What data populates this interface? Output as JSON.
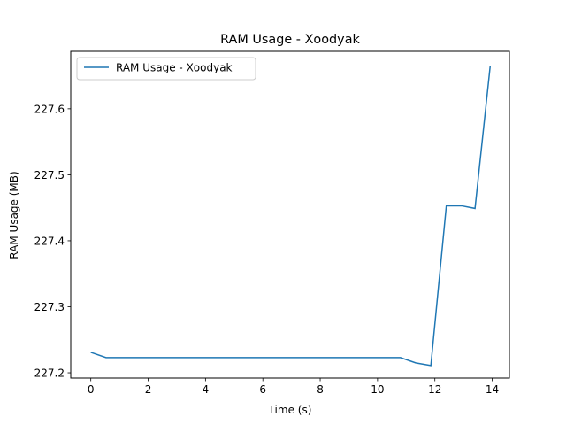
{
  "chart_data": {
    "type": "line",
    "title": "RAM Usage - Xoodyak",
    "xlabel": "Time (s)",
    "ylabel": "RAM Usage (MB)",
    "xlim": [
      -0.7,
      14.6
    ],
    "ylim": [
      227.192,
      227.687
    ],
    "xticks": [
      0,
      2,
      4,
      6,
      8,
      10,
      12,
      14
    ],
    "yticks": [
      227.2,
      227.3,
      227.4,
      227.5,
      227.6
    ],
    "ytick_labels": [
      "227.2",
      "227.3",
      "227.4",
      "227.5",
      "227.6"
    ],
    "xtick_labels": [
      "0",
      "2",
      "4",
      "6",
      "8",
      "10",
      "12",
      "14"
    ],
    "grid": false,
    "legend": {
      "placement": "top-left"
    },
    "series": [
      {
        "name": "RAM Usage - Xoodyak",
        "color": "#1f77b4",
        "x": [
          0,
          0.53,
          1.06,
          1.6,
          2.13,
          2.66,
          3.2,
          3.73,
          4.26,
          4.8,
          5.33,
          5.86,
          6.4,
          6.93,
          7.46,
          8.0,
          8.53,
          9.06,
          9.6,
          10.13,
          10.8,
          11.33,
          11.86,
          12.4,
          12.93,
          13.4,
          13.93
        ],
        "y": [
          227.231,
          227.223,
          227.223,
          227.223,
          227.223,
          227.223,
          227.223,
          227.223,
          227.223,
          227.223,
          227.223,
          227.223,
          227.223,
          227.223,
          227.223,
          227.223,
          227.223,
          227.223,
          227.223,
          227.223,
          227.223,
          227.215,
          227.211,
          227.453,
          227.453,
          227.449,
          227.665
        ]
      }
    ]
  }
}
